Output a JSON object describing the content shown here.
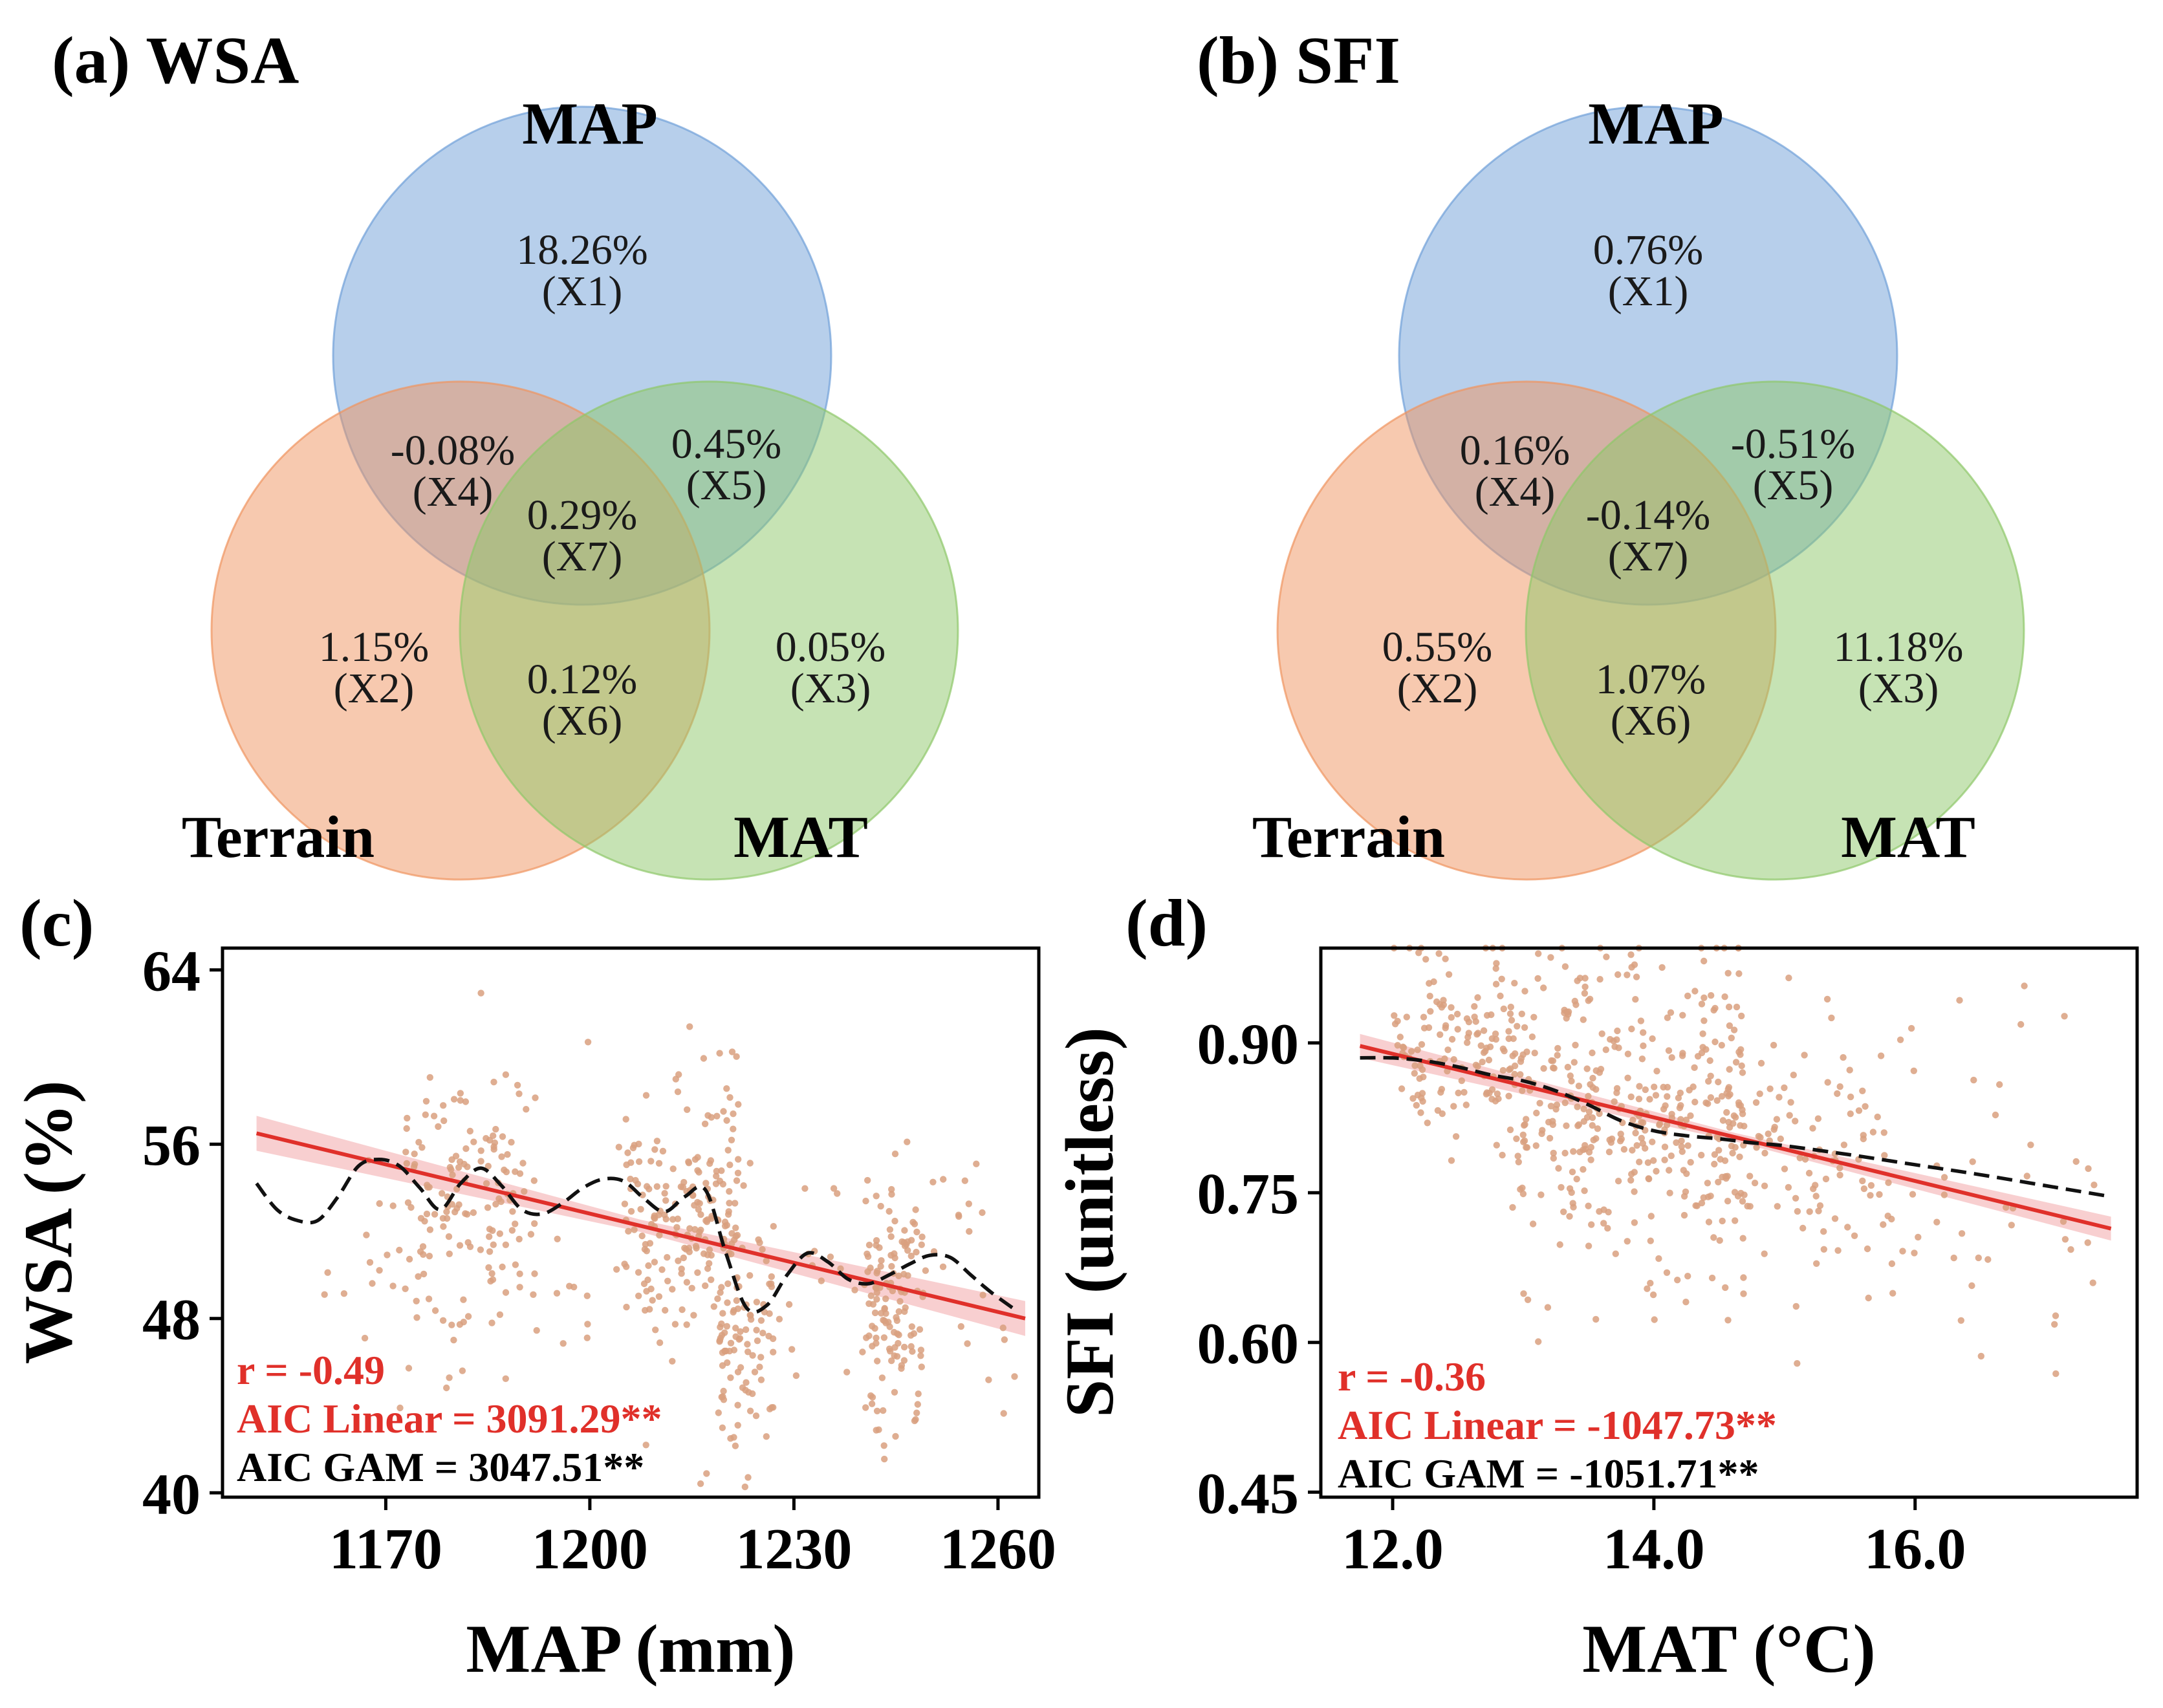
{
  "chart_data": [
    {
      "type": "venn",
      "panel": "(a) WSA",
      "sets": [
        "MAP",
        "Terrain",
        "MAT"
      ],
      "colors": {
        "MAP": "#6fa0d8",
        "Terrain": "#ef9460",
        "MAT": "#8ec86a"
      },
      "regions": [
        {
          "id": "X1",
          "value": "18.26%",
          "label": "(X1)"
        },
        {
          "id": "X2",
          "value": "1.15%",
          "label": "(X2)"
        },
        {
          "id": "X3",
          "value": "0.05%",
          "label": "(X3)"
        },
        {
          "id": "X4",
          "value": "-0.08%",
          "label": "(X4)"
        },
        {
          "id": "X5",
          "value": "0.45%",
          "label": "(X5)"
        },
        {
          "id": "X6",
          "value": "0.12%",
          "label": "(X6)"
        },
        {
          "id": "X7",
          "value": "0.29%",
          "label": "(X7)"
        }
      ]
    },
    {
      "type": "venn",
      "panel": "(b) SFI",
      "sets": [
        "MAP",
        "Terrain",
        "MAT"
      ],
      "colors": {
        "MAP": "#6fa0d8",
        "Terrain": "#ef9460",
        "MAT": "#8ec86a"
      },
      "regions": [
        {
          "id": "X1",
          "value": "0.76%",
          "label": "(X1)"
        },
        {
          "id": "X2",
          "value": "0.55%",
          "label": "(X2)"
        },
        {
          "id": "X3",
          "value": "11.18%",
          "label": "(X3)"
        },
        {
          "id": "X4",
          "value": "0.16%",
          "label": "(X4)"
        },
        {
          "id": "X5",
          "value": "-0.51%",
          "label": "(X5)"
        },
        {
          "id": "X6",
          "value": "1.07%",
          "label": "(X6)"
        },
        {
          "id": "X7",
          "value": "-0.14%",
          "label": "(X7)"
        }
      ]
    },
    {
      "type": "scatter",
      "panel": "(c)",
      "xlabel": "MAP (mm)",
      "ylabel": "WSA (%)",
      "xlim": [
        1146,
        1266
      ],
      "ylim": [
        39.8,
        65
      ],
      "xticks": [
        1170,
        1200,
        1230,
        1260
      ],
      "yticks": [
        40,
        48,
        56,
        64
      ],
      "point_color": "#d9a07f",
      "n_points_approx": 650,
      "scatter_clusters": [
        {
          "x_range": [
            1173,
            1192
          ],
          "y_mean": 54,
          "y_sd": 3,
          "count": 120
        },
        {
          "x_range": [
            1205,
            1222
          ],
          "y_mean": 53,
          "y_sd": 3,
          "count": 190
        },
        {
          "x_range": [
            1219,
            1227
          ],
          "y_mean": 47,
          "y_sd": 2.5,
          "count": 90
        },
        {
          "x_range": [
            1240,
            1249
          ],
          "y_mean": 48.5,
          "y_sd": 3,
          "count": 130
        },
        {
          "x_range": [
            1160,
            1264
          ],
          "y_mean": 51,
          "y_sd": 3.5,
          "count": 120
        }
      ],
      "linear_fit": {
        "x": [
          1151,
          1264
        ],
        "y": [
          56.5,
          48.0
        ],
        "color": "#e0302a",
        "band": 0.8
      },
      "gam_fit": {
        "color": "#111111",
        "x": [
          1151,
          1154,
          1157,
          1160,
          1163,
          1166,
          1169,
          1172,
          1175,
          1178,
          1181,
          1184,
          1187,
          1190,
          1193,
          1196,
          1199,
          1202,
          1205,
          1208,
          1211,
          1214,
          1217,
          1220,
          1223,
          1226,
          1229,
          1232,
          1235,
          1238,
          1241,
          1244,
          1247,
          1250,
          1253,
          1256,
          1259,
          1263
        ],
        "y": [
          54.2,
          53.0,
          52.5,
          52.5,
          53.6,
          55.0,
          55.3,
          55.0,
          54.0,
          53.0,
          54.2,
          54.9,
          54.1,
          53.0,
          52.8,
          53.3,
          54.0,
          54.4,
          54.3,
          53.5,
          52.9,
          53.6,
          53.9,
          51.0,
          48.5,
          48.6,
          50.0,
          51.0,
          50.6,
          49.8,
          49.6,
          50.0,
          50.5,
          50.9,
          50.8,
          50.0,
          49.2,
          48.3
        ]
      },
      "annotations": [
        {
          "text": "r = -0.49",
          "color": "#e0302a"
        },
        {
          "text": "AIC Linear = 3091.29**",
          "color": "#e0302a"
        },
        {
          "text": "AIC GAM = 3047.51**",
          "color": "#000000"
        }
      ]
    },
    {
      "type": "scatter",
      "panel": "(d)",
      "xlabel": "MAT (°C)",
      "ylabel": "SFI (unitless)",
      "xlim": [
        11.45,
        17.7
      ],
      "ylim": [
        0.445,
        0.995
      ],
      "xticks": [
        "12.0",
        "14.0",
        "16.0"
      ],
      "yticks": [
        "0.45",
        "0.60",
        "0.75",
        "0.90"
      ],
      "point_color": "#d9a07f",
      "n_points_approx": 700,
      "scatter_clusters": [
        {
          "x_range": [
            12.0,
            13.0
          ],
          "y_mean": 0.9,
          "y_sd": 0.05,
          "count": 140
        },
        {
          "x_range": [
            12.9,
            14.7
          ],
          "y_mean": 0.83,
          "y_sd": 0.08,
          "count": 380
        },
        {
          "x_range": [
            14.5,
            15.8
          ],
          "y_mean": 0.78,
          "y_sd": 0.07,
          "count": 110
        },
        {
          "x_range": [
            15.8,
            17.5
          ],
          "y_mean": 0.76,
          "y_sd": 0.1,
          "count": 45
        }
      ],
      "linear_fit": {
        "x": [
          11.75,
          17.5
        ],
        "y": [
          0.897,
          0.714
        ],
        "color": "#e0302a",
        "band": 0.012
      },
      "gam_fit": {
        "color": "#111111",
        "x": [
          11.75,
          12.0,
          12.25,
          12.5,
          12.75,
          13.0,
          13.25,
          13.5,
          13.75,
          14.0,
          14.25,
          14.5,
          14.75,
          15.0,
          15.5,
          16.0,
          16.5,
          17.0,
          17.5
        ],
        "y": [
          0.885,
          0.885,
          0.882,
          0.876,
          0.868,
          0.862,
          0.852,
          0.838,
          0.822,
          0.812,
          0.807,
          0.804,
          0.8,
          0.797,
          0.788,
          0.778,
          0.768,
          0.757,
          0.746
        ]
      },
      "annotations": [
        {
          "text": "r = -0.36",
          "color": "#e0302a"
        },
        {
          "text": "AIC Linear = -1047.73**",
          "color": "#e0302a"
        },
        {
          "text": "AIC GAM = -1051.71**",
          "color": "#000000"
        }
      ]
    }
  ]
}
